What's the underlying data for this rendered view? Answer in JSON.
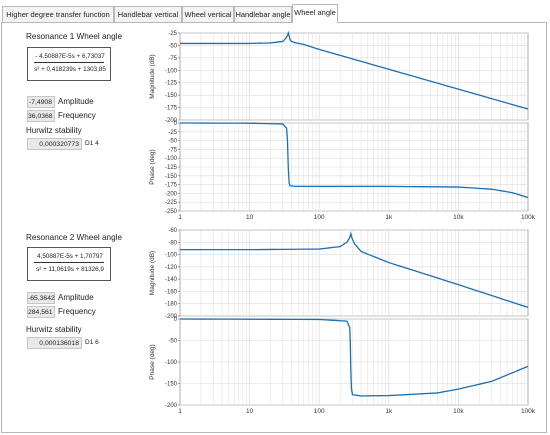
{
  "tabs": [
    {
      "label": "Higher degree transfer function",
      "active": false
    },
    {
      "label": "Handlebar vertical",
      "active": false
    },
    {
      "label": "Wheel vertical",
      "active": false
    },
    {
      "label": "Handlebar angle",
      "active": false
    },
    {
      "label": "Wheel angle",
      "active": true
    }
  ],
  "resonance1": {
    "title": "Resonance 1 Wheel angle",
    "numerator": "- 4,50887E-5s + 6,73037",
    "denominator": "s² + 0,418239s + 1303,85",
    "amplitude_value": "-7,4908",
    "amplitude_label": "Amplitude",
    "frequency_value": "36,0368",
    "frequency_label": "Frequency",
    "hurwitz_label": "Hurwitz stability",
    "hurwitz_value": "0,000320773",
    "d_label": "D1 4"
  },
  "resonance2": {
    "title": "Resonance 2 Wheel angle",
    "numerator": "4,50887E-5s + 1,70797",
    "denominator": "s² + 11,0619s + 81326,9",
    "amplitude_value": "-65,3642",
    "amplitude_label": "Amplitude",
    "frequency_value": "284,561",
    "frequency_label": "Frequency",
    "hurwitz_label": "Hurwitz stability",
    "hurwitz_value": "0,000136018",
    "d_label": "D1 6"
  },
  "colors": {
    "curve": "#1a6fb5",
    "grid": "#dcdcdc",
    "plot_bg": "#ffffff"
  },
  "chart_data": [
    {
      "type": "line",
      "id": "mag1",
      "ylabel": "Magnitude (dB)",
      "xscale": "log",
      "xlim": [
        1,
        100000
      ],
      "ylim": [
        -200,
        -25
      ],
      "yticks": [
        -25,
        -50,
        -75,
        -100,
        -125,
        -150,
        -175,
        -200
      ],
      "xticks": [],
      "x": [
        1,
        10,
        20,
        30,
        33,
        35,
        36,
        37,
        38,
        40,
        45,
        60,
        100,
        1000,
        10000,
        100000
      ],
      "series": [
        {
          "values": [
            -46,
            -46,
            -45,
            -42,
            -36,
            -30,
            -25,
            -31,
            -38,
            -42,
            -44.5,
            -48,
            -58,
            -98,
            -138,
            -178
          ]
        }
      ]
    },
    {
      "type": "line",
      "id": "phase1",
      "ylabel": "Phase (deg)",
      "xscale": "log",
      "xlim": [
        1,
        100000
      ],
      "ylim": [
        -250,
        0
      ],
      "yticks": [
        0,
        -25,
        -50,
        -75,
        -100,
        -125,
        -150,
        -175,
        -200,
        -225,
        -250
      ],
      "xticks": [
        "1",
        "10",
        "100",
        "1k",
        "10k",
        "100k"
      ],
      "x": [
        1,
        10,
        30,
        34,
        35,
        36,
        37,
        38,
        45,
        100,
        1000,
        10000,
        30000,
        60000,
        100000
      ],
      "series": [
        {
          "values": [
            0,
            -0.5,
            -3,
            -15,
            -50,
            -130,
            -170,
            -178,
            -180,
            -180,
            -180,
            -182,
            -188,
            -198,
            -212
          ]
        }
      ]
    },
    {
      "type": "line",
      "id": "mag2",
      "ylabel": "Magnitude (dB)",
      "xscale": "log",
      "xlim": [
        1,
        100000
      ],
      "ylim": [
        -200,
        -60
      ],
      "yticks": [
        -60,
        -80,
        -100,
        -120,
        -140,
        -160,
        -180,
        -200
      ],
      "xticks": [],
      "x": [
        1,
        10,
        100,
        200,
        250,
        275,
        285,
        295,
        320,
        400,
        1000,
        10000,
        100000
      ],
      "series": [
        {
          "values": [
            -92,
            -92,
            -91,
            -87,
            -80,
            -72,
            -66,
            -73,
            -82,
            -95,
            -113,
            -149,
            -186
          ]
        }
      ]
    },
    {
      "type": "line",
      "id": "phase2",
      "ylabel": "Phase (deg)",
      "xscale": "log",
      "xlim": [
        1,
        100000
      ],
      "ylim": [
        -200,
        0
      ],
      "yticks": [
        0,
        -50,
        -100,
        -150,
        -200
      ],
      "xticks": [
        "1",
        "10",
        "100",
        "1k",
        "10k",
        "100k"
      ],
      "x": [
        1,
        100,
        250,
        275,
        280,
        285,
        290,
        300,
        400,
        1000,
        5000,
        10000,
        30000,
        60000,
        100000
      ],
      "series": [
        {
          "values": [
            0,
            -1,
            -5,
            -20,
            -60,
            -120,
            -160,
            -176,
            -179,
            -178,
            -172,
            -163,
            -145,
            -125,
            -110
          ]
        }
      ]
    }
  ]
}
